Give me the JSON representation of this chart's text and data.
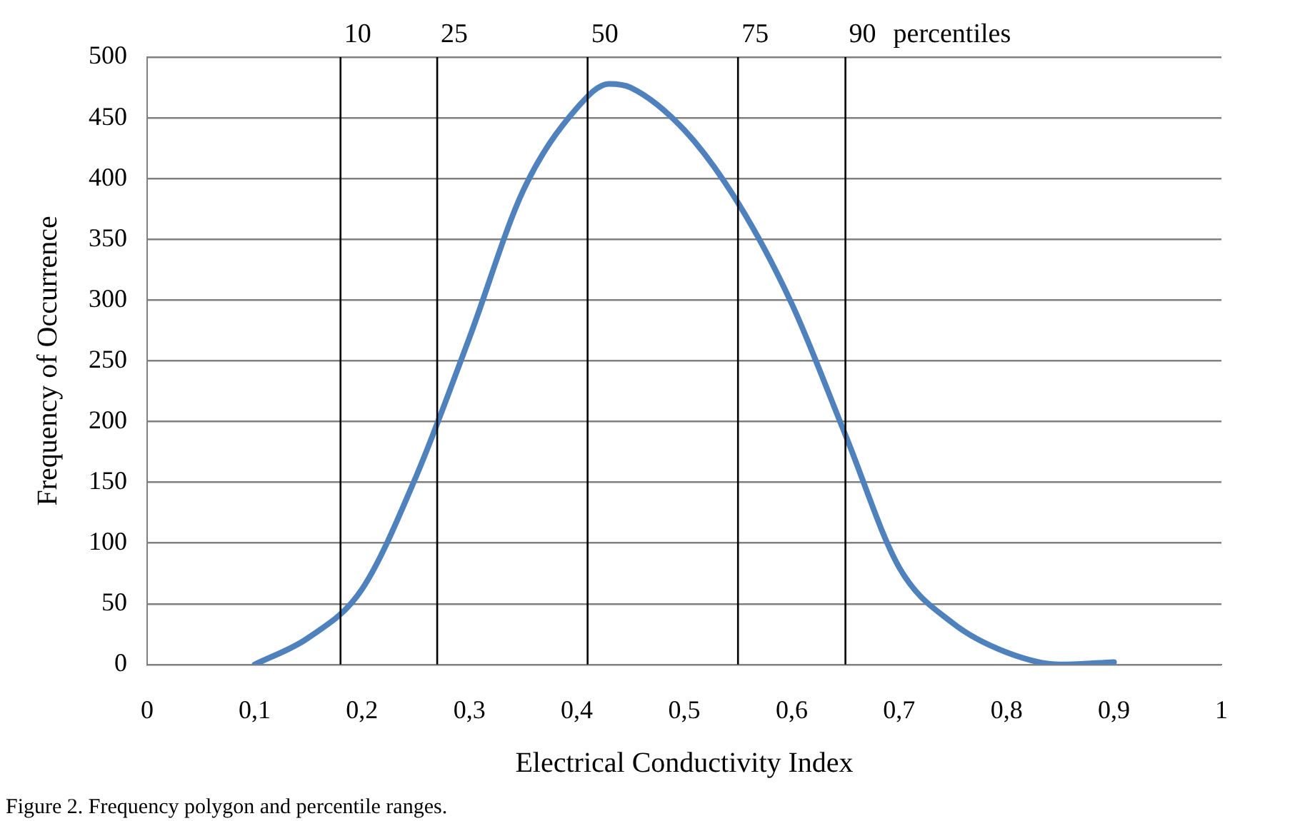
{
  "chart_data": {
    "type": "line",
    "xlabel": "Electrical Conductivity Index",
    "ylabel": "Frequency of Occurrence",
    "x": [
      0.1,
      0.15,
      0.2,
      0.25,
      0.3,
      0.35,
      0.4,
      0.43,
      0.45,
      0.5,
      0.55,
      0.6,
      0.65,
      0.7,
      0.75,
      0.8,
      0.85,
      0.9
    ],
    "series": [
      {
        "color": "#4f81bd",
        "values": [
          0,
          22,
          62,
          154,
          269,
          390,
          458,
          478,
          475,
          440,
          380,
          297,
          189,
          80,
          34,
          10,
          0,
          2
        ]
      }
    ],
    "xlim": [
      0,
      1
    ],
    "xticks": [
      0,
      {
        "value": 0.1,
        "label": "0,1"
      },
      {
        "value": 0.2,
        "label": "0,2"
      },
      {
        "value": 0.3,
        "label": "0,3"
      },
      {
        "value": 0.4,
        "label": "0,4"
      },
      {
        "value": 0.5,
        "label": "0,5"
      },
      {
        "value": 0.6,
        "label": "0,6"
      },
      {
        "value": 0.7,
        "label": "0,7"
      },
      {
        "value": 0.8,
        "label": "0,8"
      },
      {
        "value": 0.9,
        "label": "0,9"
      },
      1
    ],
    "ylim": [
      0,
      500
    ],
    "yticks": [
      0,
      50,
      100,
      150,
      200,
      250,
      300,
      350,
      400,
      450,
      500
    ],
    "ref_lines": [
      {
        "axis": "x",
        "value": 0.18,
        "color": "#000000"
      },
      {
        "axis": "x",
        "value": 0.27,
        "color": "#000000"
      },
      {
        "axis": "x",
        "value": 0.41,
        "color": "#000000"
      },
      {
        "axis": "x",
        "value": 0.55,
        "color": "#000000"
      },
      {
        "axis": "x",
        "value": 0.65,
        "color": "#000000"
      }
    ],
    "annotations": [
      {
        "text": "10",
        "x": 0.18,
        "y": 500
      },
      {
        "text": "25",
        "x": 0.27,
        "y": 500
      },
      {
        "text": "50",
        "x": 0.41,
        "y": 500
      },
      {
        "text": "75",
        "x": 0.55,
        "y": 500
      },
      {
        "text": "90",
        "x": 0.65,
        "y": 500
      },
      "percentiles",
      "Figure 2. Frequency polygon and percentile ranges."
    ],
    "grid": "y",
    "legend": false,
    "marker": "none",
    "line_style": "solid"
  }
}
